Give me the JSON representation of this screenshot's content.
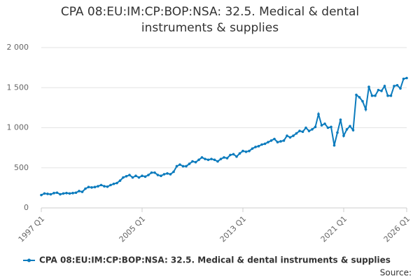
{
  "chart_data": {
    "type": "line",
    "title": "CPA 08:EU:IM:CP:BOP:NSA: 32.5. Medical & dental instruments & supplies",
    "source": "Source:",
    "categories": [
      "1997 Q1",
      null,
      null,
      null,
      null,
      null,
      null,
      null,
      null,
      null,
      null,
      null,
      null,
      null,
      null,
      null,
      null,
      null,
      null,
      null,
      null,
      null,
      null,
      null,
      null,
      null,
      null,
      null,
      null,
      null,
      null,
      null,
      "2005 Q1",
      null,
      null,
      null,
      null,
      null,
      null,
      null,
      null,
      null,
      null,
      null,
      null,
      null,
      null,
      null,
      null,
      null,
      null,
      null,
      null,
      null,
      null,
      null,
      null,
      null,
      null,
      null,
      null,
      null,
      null,
      null,
      "2013 Q1",
      null,
      null,
      null,
      null,
      null,
      null,
      null,
      null,
      null,
      null,
      null,
      null,
      null,
      null,
      null,
      null,
      null,
      null,
      null,
      null,
      null,
      null,
      null,
      null,
      null,
      null,
      null,
      null,
      null,
      null,
      null,
      "2021 Q1",
      null,
      null,
      null,
      null,
      null,
      null,
      null,
      null,
      null,
      null,
      null,
      null,
      null,
      null,
      null,
      null,
      null,
      null,
      null,
      "2026 Q1"
    ],
    "series": [
      {
        "name": "CPA 08:EU:IM:CP:BOP:NSA: 32.5. Medical & dental instruments & supplies",
        "color": "#0b7bbd",
        "values": [
          160,
          180,
          175,
          170,
          185,
          190,
          170,
          180,
          185,
          180,
          185,
          190,
          210,
          200,
          240,
          260,
          255,
          260,
          270,
          285,
          270,
          265,
          285,
          300,
          310,
          340,
          380,
          395,
          410,
          380,
          400,
          380,
          400,
          390,
          410,
          440,
          440,
          410,
          400,
          420,
          430,
          420,
          450,
          520,
          540,
          520,
          520,
          550,
          580,
          570,
          600,
          630,
          610,
          600,
          610,
          600,
          580,
          610,
          630,
          620,
          660,
          670,
          640,
          680,
          710,
          700,
          710,
          740,
          760,
          770,
          790,
          800,
          820,
          840,
          860,
          820,
          830,
          840,
          900,
          880,
          900,
          930,
          960,
          950,
          1000,
          960,
          980,
          1010,
          1170,
          1030,
          1050,
          1000,
          1010,
          780,
          940,
          1100,
          900,
          980,
          1020,
          970,
          1410,
          1380,
          1330,
          1230,
          1510,
          1400,
          1400,
          1470,
          1460,
          1520,
          1400,
          1400,
          1520,
          1530,
          1490,
          1610,
          1620
        ]
      }
    ],
    "ylim": [
      0,
      2000
    ],
    "yticks": [
      0,
      500,
      {
        "value": 1000,
        "label": "1 000"
      },
      {
        "value": 1500,
        "label": "1 500"
      },
      {
        "value": 2000,
        "label": "2 000"
      }
    ],
    "grid": true,
    "legend": "bottom"
  }
}
